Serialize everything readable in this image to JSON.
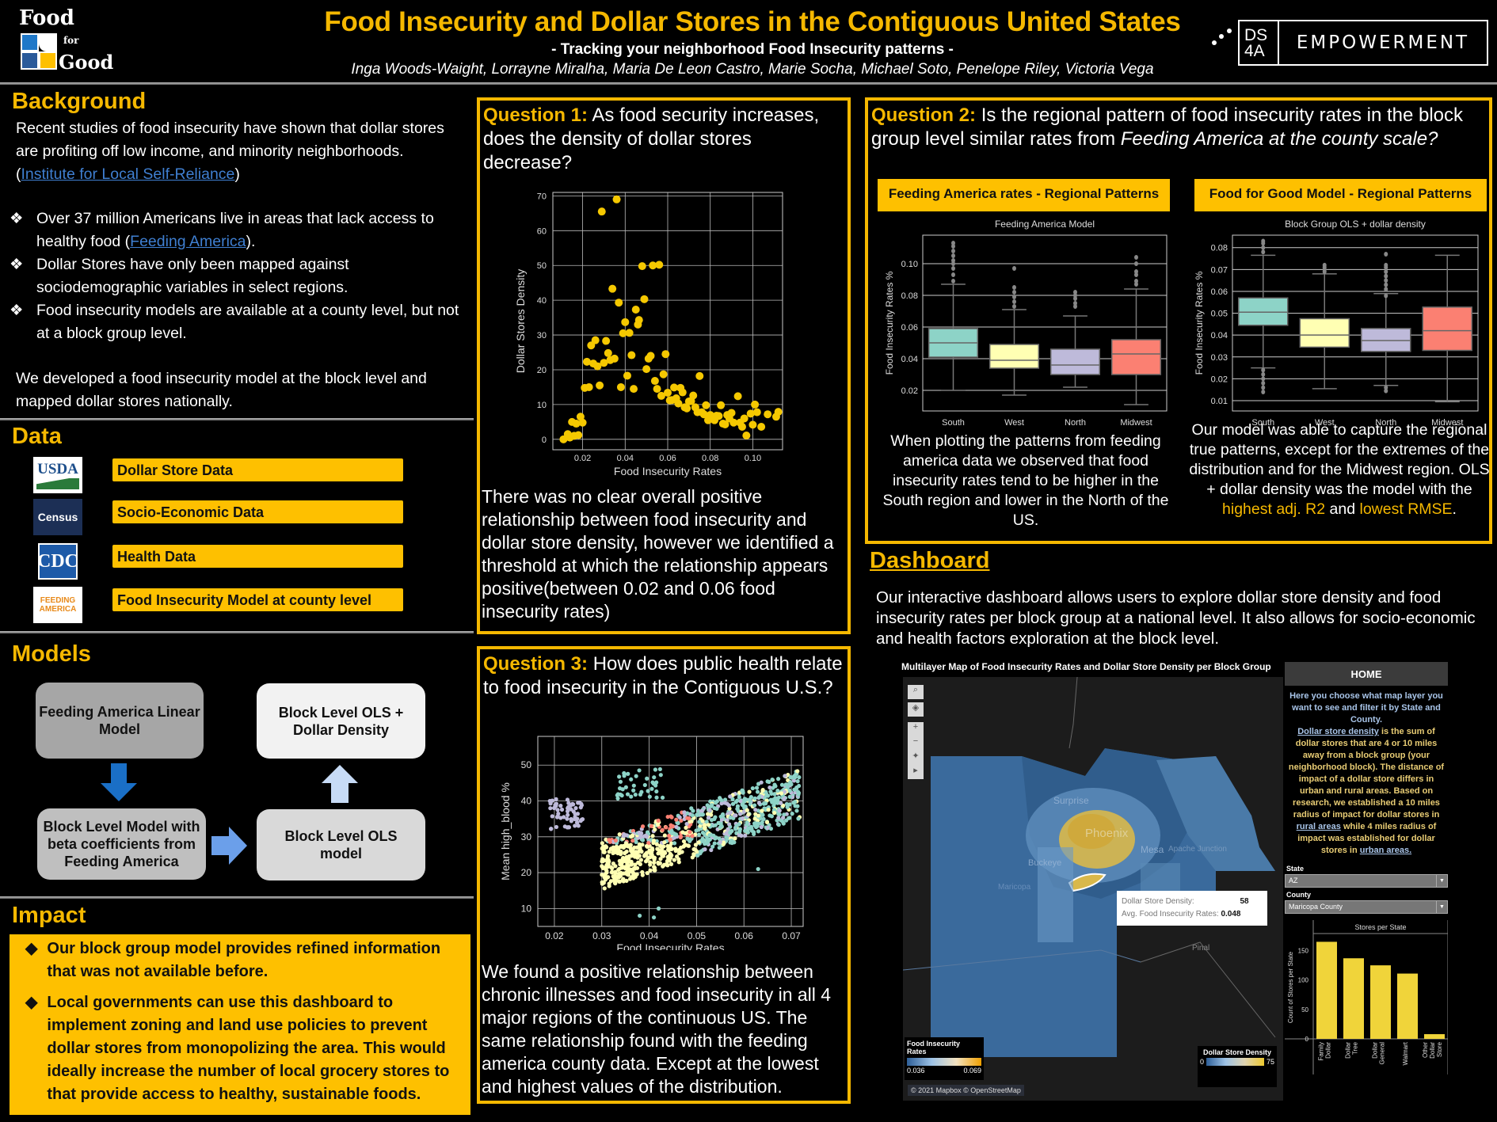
{
  "header": {
    "logo": {
      "line1": "Food",
      "line2": "for",
      "line3": "Good",
      "colors": [
        "#1f78c8",
        "#ffffff",
        "#2a5a9a",
        "#fec000"
      ]
    },
    "title": "Food Insecurity and Dollar Stores in the Contiguous United States",
    "subtitle": "- Tracking your neighborhood Food Insecurity patterns -",
    "authors": "Inga Woods-Waight, Lorrayne Miralha, Maria De Leon Castro, Marie Socha, Michael Soto, Penelope Riley, Victoria Vega",
    "partner": {
      "short_top": "DS",
      "short_bottom": "4A",
      "name": "EMPOWERMENT"
    }
  },
  "colors": {
    "accent": "#f5b800",
    "box_yellow": "#fec000",
    "link": "#3f7fd1",
    "background": "#000000"
  },
  "background": {
    "heading": "Background",
    "intro": "Recent studies of food insecurity have shown that dollar stores are profiting off low income, and minority neighborhoods. (",
    "intro_link": "Institute for Local Self-Reliance",
    "intro_end": ")",
    "bullets": [
      {
        "text": "Over 37 million Americans live in areas that lack access to healthy food (",
        "link": "Feeding America",
        "end": ")."
      },
      {
        "text": "Dollar Stores have only been mapped against sociodemographic variables in select regions."
      },
      {
        "text": "Food insecurity models are available at a county level, but not at a block group level."
      }
    ],
    "bullet_icon": "❖",
    "closing": "We developed a food insecurity model at the block level and mapped dollar stores nationally."
  },
  "data_section": {
    "heading": "Data",
    "sources": [
      {
        "logo": "USDA",
        "label": "Dollar Store Data"
      },
      {
        "logo": "Census",
        "label": "Socio-Economic Data"
      },
      {
        "logo": "CDC",
        "label": "Health Data"
      },
      {
        "logo": "FEEDING AMERICA",
        "label": "Food Insecurity Model at county level"
      }
    ]
  },
  "models": {
    "heading": "Models",
    "boxes": [
      {
        "label": "Feeding America Linear Model"
      },
      {
        "label": "Block Level Model with beta coefficients from Feeding America"
      },
      {
        "label": "Block Level OLS model"
      },
      {
        "label": "Block Level OLS + Dollar Density"
      }
    ]
  },
  "impact": {
    "heading": "Impact",
    "bullet_icon": "◆",
    "bullets": [
      "Our block group model provides refined information that was not available before.",
      "Local governments can use this dashboard to implement zoning and land use policies to prevent dollar stores from monopolizing the area. This would ideally  increase the number of local grocery stores to  that provide access to healthy, sustainable foods."
    ]
  },
  "q1": {
    "label": "Question 1:",
    "question": "As food security increases, does the density of dollar stores decrease?",
    "answer": "There was no clear overall positive relationship between food insecurity and dollar store density, however we identified a threshold at which the relationship appears positive(between 0.02 and 0.06  food insecurity rates)"
  },
  "q2": {
    "label": "Question 2:",
    "question_a": "Is the regional pattern of food insecurity rates in the block group level similar rates from ",
    "question_b": "Feeding America at the county scale?",
    "left_banner": "Feeding America rates - Regional Patterns",
    "right_banner": "Food for Good Model - Regional Patterns",
    "left_text": "When plotting the patterns from feeding america data we observed that food insecurity rates tend to be higher in the South region and lower in the North of the US.",
    "right_text_a": "Our model was able to capture the regional true patterns, except for the extremes of the distribution and for the Midwest region.  OLS + dollar density was the model with the ",
    "right_hl1": "highest adj. R2",
    "right_text_b": " and ",
    "right_hl2": "lowest RMSE",
    "right_text_c": "."
  },
  "q3": {
    "label": "Question 3:",
    "question": "How does public health relate to food insecurity in the Contiguous U.S.?",
    "answer": "We found a positive relationship between chronic illnesses and food insecurity in all 4 major regions of the continuous US. The same relationship found with the feeding america county data. Except at the lowest and highest values of the distribution."
  },
  "dashboard": {
    "heading": "Dashboard",
    "description": "Our interactive dashboard allows users to explore dollar store density and food insecurity rates per block group at a national level. It also allows for socio-economic and health factors exploration at the block level.",
    "map_title": "Multilayer Map of Food Insecurity Rates and Dollar Store Density per Block Group",
    "map_controls": [
      "search-icon",
      "layers-icon",
      "zoom-in-icon",
      "zoom-out-icon",
      "pin-icon",
      "play-icon"
    ],
    "map_labels": [
      "Surprise",
      "Phoenix",
      "Mesa",
      "Buckeye",
      "Maricopa",
      "Apache Junction",
      "Pinal"
    ],
    "tooltip": {
      "density_label": "Dollar Store Density:",
      "density_value": "58",
      "rate_label": "Avg. Food Insecurity Rates:",
      "rate_value": "0.048"
    },
    "legend_fi": {
      "title": "Food Insecurity Rates",
      "min": "0.036",
      "max": "0.069"
    },
    "legend_ds": {
      "title": "Dollar Store Density",
      "min": "0",
      "max": "75"
    },
    "attribution": "© 2021 Mapbox © OpenStreetMap",
    "side": {
      "home": "HOME",
      "intro": "Here you choose what map layer you want to see and filter it by State and County.",
      "def_link": "Dollar store density",
      "def_text": " is the sum of dollar stores that are 4 or 10 miles away from a block group (your neighborhood block).  The distance of impact of a dollar store differs in urban and rural areas. Based on research, we established a 10 miles radius of impact for dollar stores in ",
      "rural_link": "rural areas",
      "mid_text": " while 4 miles radius of impact was established for dollar stores in ",
      "urban_link": "urban areas.",
      "state_label": "State",
      "state_value": "AZ",
      "county_label": "County",
      "county_value": "Maricopa County"
    }
  },
  "chart_data": [
    {
      "type": "scatter",
      "title": "",
      "xlabel": "Food Insecurity Rates",
      "ylabel": "Dollar Stores Density",
      "xlim": [
        0.006,
        0.114
      ],
      "ylim": [
        -3,
        71
      ],
      "xticks": [
        0.02,
        0.04,
        0.06,
        0.08,
        0.1
      ],
      "yticks": [
        0,
        10,
        20,
        30,
        40,
        50,
        60,
        70
      ],
      "grid": true,
      "color": "#f5c800",
      "points": [
        [
          0.011,
          0
        ],
        [
          0.013,
          1.5
        ],
        [
          0.014,
          0.5
        ],
        [
          0.015,
          5
        ],
        [
          0.016,
          1
        ],
        [
          0.017,
          4.5
        ],
        [
          0.018,
          1.2
        ],
        [
          0.019,
          6.5
        ],
        [
          0.02,
          4.8
        ],
        [
          0.021,
          14.8
        ],
        [
          0.022,
          22.3
        ],
        [
          0.023,
          15
        ],
        [
          0.024,
          27
        ],
        [
          0.025,
          21.8
        ],
        [
          0.026,
          28.5
        ],
        [
          0.027,
          21
        ],
        [
          0.028,
          15.5
        ],
        [
          0.029,
          65.5
        ],
        [
          0.03,
          22
        ],
        [
          0.031,
          28.3
        ],
        [
          0.032,
          24.8
        ],
        [
          0.033,
          22.8
        ],
        [
          0.034,
          43.3
        ],
        [
          0.035,
          23.2
        ],
        [
          0.036,
          69
        ],
        [
          0.037,
          39.3
        ],
        [
          0.038,
          15
        ],
        [
          0.039,
          30.5
        ],
        [
          0.04,
          33.7
        ],
        [
          0.041,
          18.3
        ],
        [
          0.042,
          30.6
        ],
        [
          0.043,
          24.2
        ],
        [
          0.044,
          14.5
        ],
        [
          0.045,
          37.3
        ],
        [
          0.046,
          33
        ],
        [
          0.0465,
          34.3
        ],
        [
          0.048,
          49.8
        ],
        [
          0.049,
          40.3
        ],
        [
          0.05,
          20.2
        ],
        [
          0.051,
          23.2
        ],
        [
          0.052,
          24
        ],
        [
          0.053,
          50
        ],
        [
          0.054,
          16.8
        ],
        [
          0.055,
          14.5
        ],
        [
          0.056,
          50.2
        ],
        [
          0.057,
          12.5
        ],
        [
          0.058,
          18.7
        ],
        [
          0.059,
          24.5
        ],
        [
          0.06,
          13.4
        ],
        [
          0.061,
          11.2
        ],
        [
          0.062,
          11.3
        ],
        [
          0.063,
          14.9
        ],
        [
          0.064,
          11.8
        ],
        [
          0.065,
          10.3
        ],
        [
          0.066,
          14.8
        ],
        [
          0.067,
          13.5
        ],
        [
          0.068,
          9.2
        ],
        [
          0.069,
          8.9
        ],
        [
          0.07,
          10.9
        ],
        [
          0.071,
          11
        ],
        [
          0.072,
          12.6
        ],
        [
          0.073,
          9.2
        ],
        [
          0.074,
          7.8
        ],
        [
          0.075,
          18.2
        ],
        [
          0.076,
          7.8
        ],
        [
          0.077,
          7.2
        ],
        [
          0.078,
          9.8
        ],
        [
          0.079,
          5.5
        ],
        [
          0.08,
          7
        ],
        [
          0.081,
          6.2
        ],
        [
          0.082,
          5.5
        ],
        [
          0.083,
          6.8
        ],
        [
          0.084,
          6.7
        ],
        [
          0.085,
          9.8
        ],
        [
          0.086,
          4.5
        ],
        [
          0.087,
          4.3
        ],
        [
          0.088,
          7
        ],
        [
          0.089,
          6
        ],
        [
          0.09,
          7.6
        ],
        [
          0.091,
          4.8
        ],
        [
          0.093,
          12.4
        ],
        [
          0.094,
          4.8
        ],
        [
          0.095,
          3.6
        ],
        [
          0.096,
          6
        ],
        [
          0.097,
          1.1
        ],
        [
          0.099,
          7.4
        ],
        [
          0.1,
          4.2
        ],
        [
          0.101,
          10
        ],
        [
          0.102,
          7.8
        ],
        [
          0.104,
          3.6
        ],
        [
          0.107,
          7.2
        ],
        [
          0.111,
          6.5
        ],
        [
          0.112,
          7.9
        ]
      ]
    },
    {
      "type": "box",
      "title": "Feeding America Model",
      "ylabel": "Food Insecurity Rates %",
      "categories": [
        "South",
        "West",
        "North",
        "Midwest"
      ],
      "ylim": [
        0.007,
        0.118
      ],
      "yticks": [
        0.02,
        0.04,
        0.06,
        0.08,
        0.1
      ],
      "colors": [
        "#8dd3c7",
        "#ffffb3",
        "#bebada",
        "#fb8072"
      ],
      "boxes": [
        {
          "whislo": 0.02,
          "q1": 0.041,
          "med": 0.05,
          "q3": 0.059,
          "whishi": 0.087,
          "fliers": [
            0.089,
            0.093,
            0.097,
            0.1,
            0.102,
            0.105,
            0.108,
            0.111,
            0.113
          ]
        },
        {
          "whislo": 0.017,
          "q1": 0.034,
          "med": 0.039,
          "q3": 0.049,
          "whishi": 0.071,
          "fliers": [
            0.073,
            0.076,
            0.079,
            0.082,
            0.085,
            0.097
          ]
        },
        {
          "whislo": 0.022,
          "q1": 0.03,
          "med": 0.036,
          "q3": 0.046,
          "whishi": 0.067,
          "fliers": [
            0.073,
            0.075,
            0.078,
            0.08,
            0.082
          ]
        },
        {
          "whislo": 0.011,
          "q1": 0.03,
          "med": 0.043,
          "q3": 0.052,
          "whishi": 0.084,
          "fliers": [
            0.087,
            0.089,
            0.093,
            0.095,
            0.1,
            0.104
          ]
        }
      ]
    },
    {
      "type": "box",
      "title": "Block Group OLS + dollar density",
      "ylabel": "Food Insecurity Rates %",
      "categories": [
        "South",
        "West",
        "North",
        "Midwest"
      ],
      "ylim": [
        0.0053,
        0.0857
      ],
      "yticks": [
        0.01,
        0.02,
        0.03,
        0.04,
        0.05,
        0.06,
        0.07,
        0.08
      ],
      "colors": [
        "#8dd3c7",
        "#ffffb3",
        "#bebada",
        "#fb8072"
      ],
      "boxes": [
        {
          "whislo": 0.025,
          "q1": 0.0445,
          "med": 0.0505,
          "q3": 0.057,
          "whishi": 0.0765,
          "fliers": [
            0.014,
            0.016,
            0.018,
            0.02,
            0.022,
            0.024,
            0.078,
            0.08,
            0.082,
            0.083
          ]
        },
        {
          "whislo": 0.0155,
          "q1": 0.0345,
          "med": 0.04,
          "q3": 0.0475,
          "whishi": 0.068,
          "fliers": [
            0.069,
            0.07,
            0.071,
            0.072
          ]
        },
        {
          "whislo": 0.017,
          "q1": 0.0325,
          "med": 0.0375,
          "q3": 0.043,
          "whishi": 0.059,
          "fliers": [
            0.0145,
            0.016,
            0.058,
            0.061,
            0.063,
            0.065,
            0.067,
            0.069,
            0.071,
            0.072,
            0.077
          ]
        },
        {
          "whislo": 0.0095,
          "q1": 0.033,
          "med": 0.042,
          "q3": 0.0528,
          "whishi": 0.0765,
          "fliers": []
        }
      ]
    },
    {
      "type": "scatter",
      "title": "",
      "xlabel": "Food Insecurity Rates",
      "ylabel": "Mean high_blood %",
      "xlim": [
        0.0165,
        0.0725
      ],
      "ylim": [
        5,
        58
      ],
      "xticks": [
        0.02,
        0.03,
        0.04,
        0.05,
        0.06,
        0.07
      ],
      "yticks": [
        10,
        20,
        30,
        40,
        50
      ],
      "grid": true,
      "series_colors": [
        "#8dd3c7",
        "#ffffb3",
        "#bebada",
        "#fb8072"
      ],
      "description": "Dense point cloud trending upward from ~30% at 0.03 to ~45% at 0.07; purple cluster at 0.02-0.025 around 35-40%; outliers near (0.038,8),(0.041,7.5),(0.042,10)"
    },
    {
      "type": "bar",
      "title": "Stores per State",
      "ylabel": "Count of  Stores per State",
      "categories": [
        "Family Dollar",
        "Dollar Tree",
        "Dollar General",
        "Walmart",
        "Other Dollar Store"
      ],
      "values": [
        165,
        137,
        125,
        111,
        8
      ],
      "yticks": [
        0,
        50,
        100,
        150
      ],
      "ylim": [
        0,
        175
      ],
      "color": "#f0d43a"
    }
  ]
}
